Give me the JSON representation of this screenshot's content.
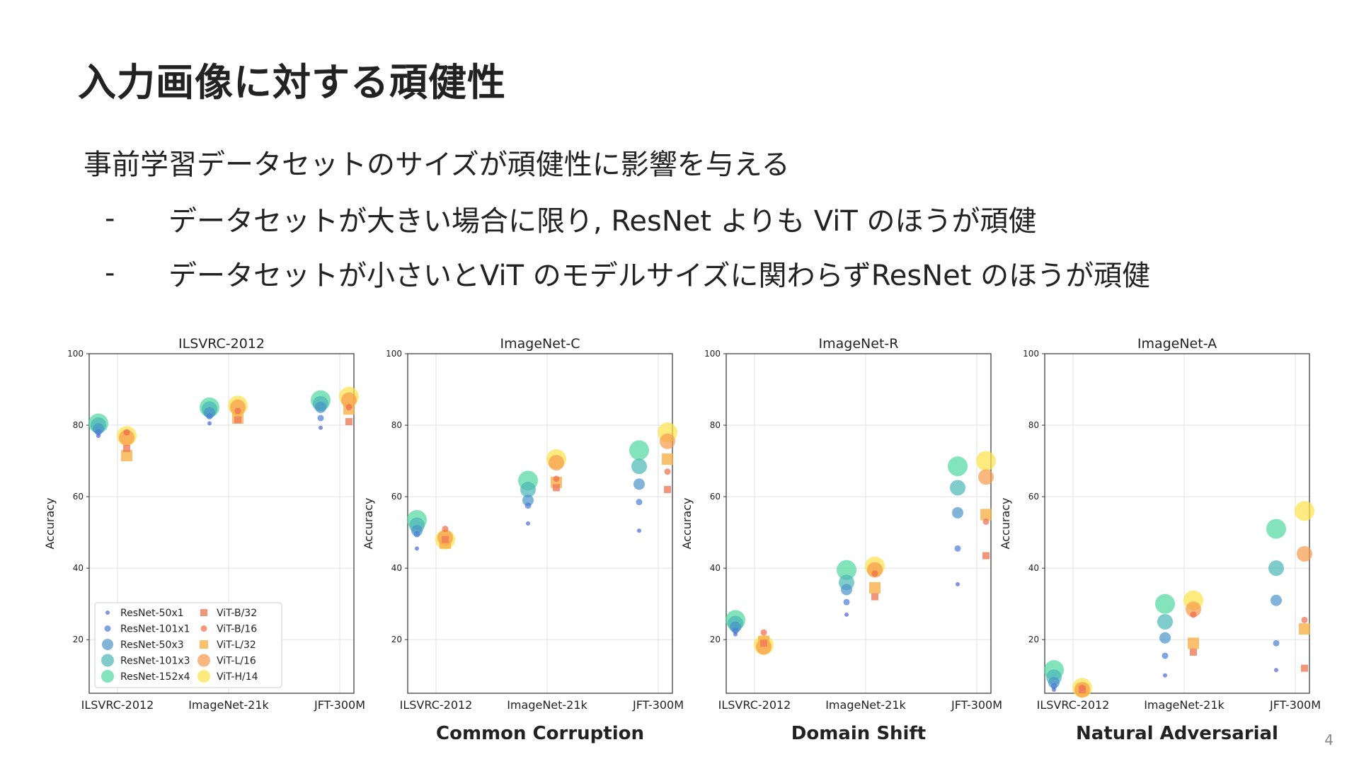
{
  "slide": {
    "title": "入力画像に対する頑健性",
    "lead": "事前学習データセットのサイズが頑健性に影響を与える",
    "bullets": [
      {
        "dash": "-",
        "text": "データセットが大きい場合に限り, ResNet よりも ViT のほうが頑健"
      },
      {
        "dash": "-",
        "text": "データセットが小さいとViT のモデルサイズに関わらずResNet のほうが頑健"
      }
    ],
    "captions": [
      "Common Corruption",
      "Domain Shift",
      "Natural Adversarial"
    ],
    "page_number": "4"
  },
  "legend": [
    {
      "name": "ResNet-50x1",
      "color": "#4a66d4",
      "shape": "circle",
      "size": 1
    },
    {
      "name": "ResNet-101x1",
      "color": "#4a7fd6",
      "shape": "circle",
      "size": 2
    },
    {
      "name": "ResNet-50x3",
      "color": "#4a94c8",
      "shape": "circle",
      "size": 3
    },
    {
      "name": "ResNet-101x3",
      "color": "#4ab5b5",
      "shape": "circle",
      "size": 4
    },
    {
      "name": "ResNet-152x4",
      "color": "#4fd9a0",
      "shape": "circle",
      "size": 5
    },
    {
      "name": "ViT-B/32",
      "color": "#f07a5a",
      "shape": "square",
      "size": 1
    },
    {
      "name": "ViT-B/16",
      "color": "#f06a4a",
      "shape": "circle",
      "size": 2
    },
    {
      "name": "ViT-L/32",
      "color": "#f8b24a",
      "shape": "square",
      "size": 3
    },
    {
      "name": "ViT-L/16",
      "color": "#f59a48",
      "shape": "circle",
      "size": 4
    },
    {
      "name": "ViT-H/14",
      "color": "#fde24a",
      "shape": "circle",
      "size": 5
    }
  ],
  "chart_data": [
    {
      "type": "scatter",
      "title": "ILSVRC-2012",
      "ylabel": "Accuracy",
      "categories": [
        "ILSVRC-2012",
        "ImageNet-21k",
        "JFT-300M"
      ],
      "ylim": [
        5,
        100
      ],
      "yticks": [
        20,
        40,
        60,
        80,
        100
      ],
      "grid": true,
      "legend_position": "bottom-left",
      "series": [
        {
          "name": "ResNet-50x1",
          "values": [
            77,
            80.5,
            79.3
          ]
        },
        {
          "name": "ResNet-101x1",
          "values": [
            78,
            82.5,
            82
          ]
        },
        {
          "name": "ResNet-50x3",
          "values": [
            79,
            83.5,
            85
          ]
        },
        {
          "name": "ResNet-101x3",
          "values": [
            80,
            84.5,
            86
          ]
        },
        {
          "name": "ResNet-152x4",
          "values": [
            80.5,
            85,
            87
          ]
        },
        {
          "name": "ViT-B/32",
          "values": [
            73.5,
            81.5,
            81
          ]
        },
        {
          "name": "ViT-B/16",
          "values": [
            78,
            84,
            85
          ]
        },
        {
          "name": "ViT-L/32",
          "values": [
            71.5,
            82,
            84.5
          ]
        },
        {
          "name": "ViT-L/16",
          "values": [
            76.5,
            85,
            87
          ]
        },
        {
          "name": "ViT-H/14",
          "values": [
            77,
            85.5,
            88
          ]
        }
      ]
    },
    {
      "type": "scatter",
      "title": "ImageNet-C",
      "ylabel": "Accuracy",
      "categories": [
        "ILSVRC-2012",
        "ImageNet-21k",
        "JFT-300M"
      ],
      "ylim": [
        5,
        100
      ],
      "yticks": [
        20,
        40,
        60,
        80,
        100
      ],
      "grid": true,
      "series": [
        {
          "name": "ResNet-50x1",
          "values": [
            45.5,
            52.5,
            50.5
          ]
        },
        {
          "name": "ResNet-101x1",
          "values": [
            49.5,
            57.5,
            58.5
          ]
        },
        {
          "name": "ResNet-50x3",
          "values": [
            50.5,
            59,
            63.5
          ]
        },
        {
          "name": "ResNet-101x3",
          "values": [
            52,
            62,
            68.5
          ]
        },
        {
          "name": "ResNet-152x4",
          "values": [
            53.5,
            64.5,
            73
          ]
        },
        {
          "name": "ViT-B/32",
          "values": [
            48,
            62.5,
            62
          ]
        },
        {
          "name": "ViT-B/16",
          "values": [
            51,
            65,
            67
          ]
        },
        {
          "name": "ViT-L/32",
          "values": [
            47,
            64,
            70.5
          ]
        },
        {
          "name": "ViT-L/16",
          "values": [
            48.5,
            69.5,
            75.5
          ]
        },
        {
          "name": "ViT-H/14",
          "values": [
            48,
            70.5,
            78
          ]
        }
      ]
    },
    {
      "type": "scatter",
      "title": "ImageNet-R",
      "ylabel": "Accuracy",
      "categories": [
        "ILSVRC-2012",
        "ImageNet-21k",
        "JFT-300M"
      ],
      "ylim": [
        5,
        100
      ],
      "yticks": [
        20,
        40,
        60,
        80,
        100
      ],
      "grid": true,
      "series": [
        {
          "name": "ResNet-50x1",
          "values": [
            21.5,
            27,
            35.5
          ]
        },
        {
          "name": "ResNet-101x1",
          "values": [
            22.5,
            30.5,
            45.5
          ]
        },
        {
          "name": "ResNet-50x3",
          "values": [
            23.5,
            34,
            55.5
          ]
        },
        {
          "name": "ResNet-101x3",
          "values": [
            24.5,
            36,
            62.5
          ]
        },
        {
          "name": "ResNet-152x4",
          "values": [
            25.5,
            39.5,
            68.5
          ]
        },
        {
          "name": "ViT-B/32",
          "values": [
            19,
            32,
            43.5
          ]
        },
        {
          "name": "ViT-B/16",
          "values": [
            22,
            38.5,
            53
          ]
        },
        {
          "name": "ViT-L/32",
          "values": [
            19.5,
            34.5,
            55
          ]
        },
        {
          "name": "ViT-L/16",
          "values": [
            18,
            39.5,
            65.5
          ]
        },
        {
          "name": "ViT-H/14",
          "values": [
            18.5,
            40.5,
            70
          ]
        }
      ]
    },
    {
      "type": "scatter",
      "title": "ImageNet-A",
      "ylabel": "Accuracy",
      "categories": [
        "ILSVRC-2012",
        "ImageNet-21k",
        "JFT-300M"
      ],
      "ylim": [
        5,
        100
      ],
      "yticks": [
        20,
        40,
        60,
        80,
        100
      ],
      "grid": true,
      "series": [
        {
          "name": "ResNet-50x1",
          "values": [
            6,
            10,
            11.5
          ]
        },
        {
          "name": "ResNet-101x1",
          "values": [
            7,
            15.5,
            19
          ]
        },
        {
          "name": "ResNet-50x3",
          "values": [
            8,
            20.5,
            31
          ]
        },
        {
          "name": "ResNet-101x3",
          "values": [
            9.5,
            25,
            40
          ]
        },
        {
          "name": "ResNet-152x4",
          "values": [
            11.5,
            30,
            51
          ]
        },
        {
          "name": "ViT-B/32",
          "values": [
            6,
            16.5,
            12
          ]
        },
        {
          "name": "ViT-B/16",
          "values": [
            6.5,
            27,
            25.5
          ]
        },
        {
          "name": "ViT-L/32",
          "values": [
            6,
            19,
            23
          ]
        },
        {
          "name": "ViT-L/16",
          "values": [
            6,
            28.5,
            44
          ]
        },
        {
          "name": "ViT-H/14",
          "values": [
            6.5,
            31,
            56
          ]
        }
      ]
    }
  ]
}
